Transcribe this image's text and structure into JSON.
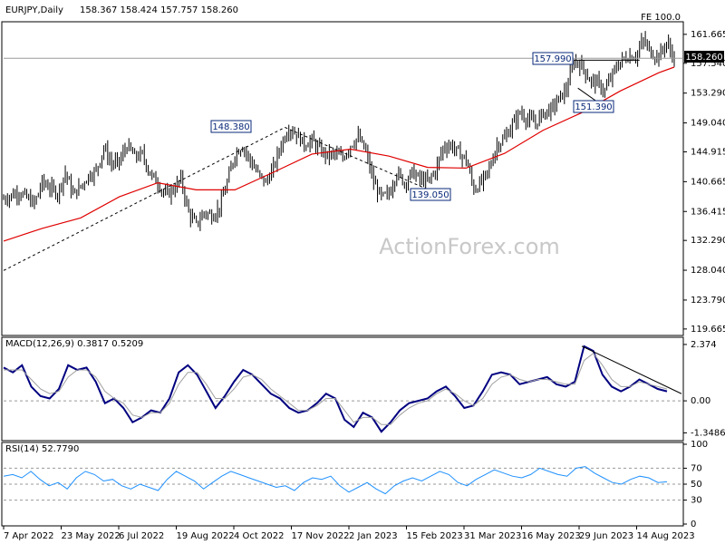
{
  "chart_data": [
    {
      "type": "candlestick",
      "title": "EURJPY,Daily",
      "ohlc_readout": "158.367 158.424 157.757 158.260",
      "top_right_note": "FE 100.0",
      "watermark": "ActionForex.com",
      "yticks": [
        "161.665",
        "157.540",
        "153.290",
        "149.040",
        "144.915",
        "140.665",
        "136.415",
        "132.290",
        "128.040",
        "123.790",
        "119.665"
      ],
      "ytick_values": [
        161.665,
        157.54,
        153.29,
        149.04,
        144.915,
        140.665,
        136.415,
        132.29,
        128.04,
        123.79,
        119.665
      ],
      "ylim": [
        119.0,
        163.2
      ],
      "xtick_labels": [
        "7 Apr 2022",
        "23 May 2022",
        "6 Jul 2022",
        "19 Aug 2022",
        "4 Oct 2022",
        "17 Nov 2022",
        "2 Jan 2023",
        "15 Feb 2023",
        "31 Mar 2023",
        "16 May 2023",
        "29 Jun 2023",
        "14 Aug 2023"
      ],
      "current_price": "158.260",
      "annotations": [
        "148.380",
        "139.050",
        "157.990",
        "151.390"
      ],
      "trend_points": [
        [
          0,
          138.2
        ],
        [
          4,
          139.2
        ],
        [
          8,
          137.5
        ],
        [
          10,
          140.6
        ],
        [
          12,
          139.8
        ],
        [
          14,
          139.0
        ],
        [
          16,
          142.0
        ],
        [
          18,
          138.8
        ],
        [
          20,
          140.0
        ],
        [
          22,
          141.5
        ],
        [
          24,
          142.2
        ],
        [
          26,
          145.5
        ],
        [
          28,
          143.2
        ],
        [
          30,
          143.5
        ],
        [
          32,
          145.8
        ],
        [
          34,
          144.2
        ],
        [
          36,
          144.5
        ],
        [
          38,
          141.8
        ],
        [
          40,
          140.5
        ],
        [
          42,
          138.7
        ],
        [
          44,
          139.5
        ],
        [
          46,
          141.0
        ],
        [
          48,
          136.2
        ],
        [
          50,
          134.5
        ],
        [
          52,
          136.3
        ],
        [
          54,
          135.8
        ],
        [
          56,
          137.0
        ],
        [
          58,
          140.5
        ],
        [
          60,
          144.6
        ],
        [
          62,
          145.8
        ],
        [
          64,
          143.6
        ],
        [
          66,
          141.8
        ],
        [
          68,
          140.5
        ],
        [
          70,
          142.6
        ],
        [
          72,
          146.0
        ],
        [
          74,
          148.3
        ],
        [
          76,
          147.4
        ],
        [
          78,
          146.0
        ],
        [
          80,
          146.5
        ],
        [
          82,
          145.2
        ],
        [
          84,
          144.4
        ],
        [
          86,
          144.6
        ],
        [
          88,
          144.0
        ],
        [
          90,
          145.9
        ],
        [
          92,
          147.0
        ],
        [
          94,
          144.9
        ],
        [
          96,
          140.5
        ],
        [
          98,
          138.4
        ],
        [
          100,
          138.9
        ],
        [
          102,
          142.0
        ],
        [
          104,
          140.5
        ],
        [
          106,
          142.0
        ],
        [
          108,
          141.0
        ],
        [
          110,
          140.6
        ],
        [
          112,
          142.2
        ],
        [
          114,
          145.5
        ],
        [
          116,
          145.9
        ],
        [
          118,
          144.8
        ],
        [
          120,
          143.8
        ],
        [
          122,
          139.6
        ],
        [
          124,
          140.5
        ],
        [
          126,
          142.5
        ],
        [
          128,
          145.9
        ],
        [
          130,
          146.8
        ],
        [
          132,
          148.8
        ],
        [
          134,
          150.5
        ],
        [
          136,
          149.5
        ],
        [
          138,
          149.0
        ],
        [
          140,
          150.5
        ],
        [
          142,
          150.9
        ],
        [
          144,
          152.4
        ],
        [
          146,
          153.8
        ],
        [
          148,
          157.9
        ],
        [
          150,
          157.2
        ],
        [
          152,
          155.2
        ],
        [
          154,
          154.7
        ],
        [
          156,
          153.6
        ],
        [
          158,
          156.0
        ],
        [
          160,
          157.8
        ],
        [
          162,
          158.5
        ],
        [
          164,
          158.6
        ],
        [
          166,
          160.8
        ],
        [
          168,
          159.0
        ],
        [
          170,
          158.5
        ],
        [
          172,
          160.5
        ],
        [
          174,
          158.2
        ]
      ],
      "ma_points": [
        [
          0,
          132.2
        ],
        [
          10,
          134.0
        ],
        [
          20,
          135.5
        ],
        [
          30,
          138.5
        ],
        [
          40,
          140.5
        ],
        [
          50,
          139.5
        ],
        [
          60,
          139.5
        ],
        [
          70,
          142.0
        ],
        [
          80,
          144.6
        ],
        [
          90,
          145.3
        ],
        [
          100,
          144.3
        ],
        [
          110,
          142.7
        ],
        [
          120,
          142.6
        ],
        [
          130,
          144.7
        ],
        [
          140,
          148.0
        ],
        [
          150,
          150.5
        ],
        [
          160,
          153.6
        ],
        [
          170,
          156.2
        ],
        [
          174,
          157.0
        ]
      ]
    },
    {
      "type": "line",
      "title": "MACD(12,26,9) 0.3817 0.5209",
      "yticks": [
        "2.374",
        "0.00",
        "-1.3486"
      ],
      "ytick_values": [
        2.374,
        0.0,
        -1.3486
      ],
      "ylim": [
        -1.6,
        2.6
      ],
      "series": [
        {
          "values": [
            1.4,
            1.2,
            1.5,
            0.6,
            0.2,
            0.1,
            0.5,
            1.5,
            1.3,
            1.4,
            0.8,
            -0.1,
            0.1,
            -0.3,
            -0.9,
            -0.7,
            -0.4,
            -0.5,
            0.1,
            1.2,
            1.5,
            1.1,
            0.4,
            -0.3,
            0.2,
            0.8,
            1.3,
            1.1,
            0.7,
            0.3,
            0.1,
            -0.3,
            -0.5,
            -0.4,
            -0.1,
            0.3,
            0.1,
            -0.8,
            -1.1,
            -0.5,
            -0.7,
            -1.3,
            -0.9,
            -0.4,
            -0.1,
            0.0,
            0.1,
            0.4,
            0.6,
            0.2,
            -0.3,
            -0.2,
            0.4,
            1.1,
            1.2,
            1.1,
            0.7,
            0.8,
            0.9,
            1.0,
            0.7,
            0.6,
            0.8,
            2.3,
            2.1,
            1.1,
            0.6,
            0.4,
            0.6,
            0.9,
            0.7,
            0.5,
            0.4
          ]
        },
        {
          "values": [
            1.3,
            1.3,
            1.3,
            0.9,
            0.5,
            0.3,
            0.4,
            1.0,
            1.3,
            1.3,
            1.0,
            0.4,
            0.1,
            -0.1,
            -0.6,
            -0.7,
            -0.5,
            -0.5,
            -0.1,
            0.7,
            1.2,
            1.2,
            0.7,
            0.1,
            0.1,
            0.5,
            1.0,
            1.1,
            0.9,
            0.5,
            0.2,
            -0.1,
            -0.4,
            -0.4,
            -0.2,
            0.1,
            0.1,
            -0.4,
            -0.9,
            -0.7,
            -0.7,
            -1.0,
            -1.0,
            -0.6,
            -0.3,
            -0.1,
            0.0,
            0.3,
            0.5,
            0.3,
            0.0,
            -0.2,
            0.1,
            0.7,
            1.0,
            1.1,
            0.9,
            0.8,
            0.9,
            0.9,
            0.8,
            0.7,
            0.7,
            1.7,
            2.0,
            1.5,
            0.9,
            0.6,
            0.6,
            0.8,
            0.7,
            0.6,
            0.5
          ]
        }
      ]
    },
    {
      "type": "line",
      "title": "RSI(14) 52.7790",
      "yticks": [
        "100",
        "70",
        "50",
        "30",
        "0"
      ],
      "ytick_values": [
        100,
        70,
        50,
        30,
        0
      ],
      "ylim": [
        0,
        100
      ],
      "series": [
        {
          "values": [
            60,
            62,
            58,
            66,
            56,
            48,
            52,
            44,
            58,
            66,
            62,
            54,
            56,
            48,
            44,
            50,
            46,
            42,
            56,
            66,
            60,
            54,
            44,
            52,
            60,
            66,
            62,
            58,
            54,
            50,
            46,
            48,
            42,
            52,
            58,
            56,
            60,
            48,
            40,
            46,
            52,
            44,
            38,
            48,
            54,
            58,
            54,
            60,
            66,
            62,
            52,
            48,
            56,
            62,
            68,
            64,
            60,
            58,
            62,
            70,
            66,
            62,
            60,
            70,
            72,
            64,
            58,
            52,
            50,
            56,
            60,
            58,
            52,
            53
          ]
        }
      ]
    }
  ]
}
